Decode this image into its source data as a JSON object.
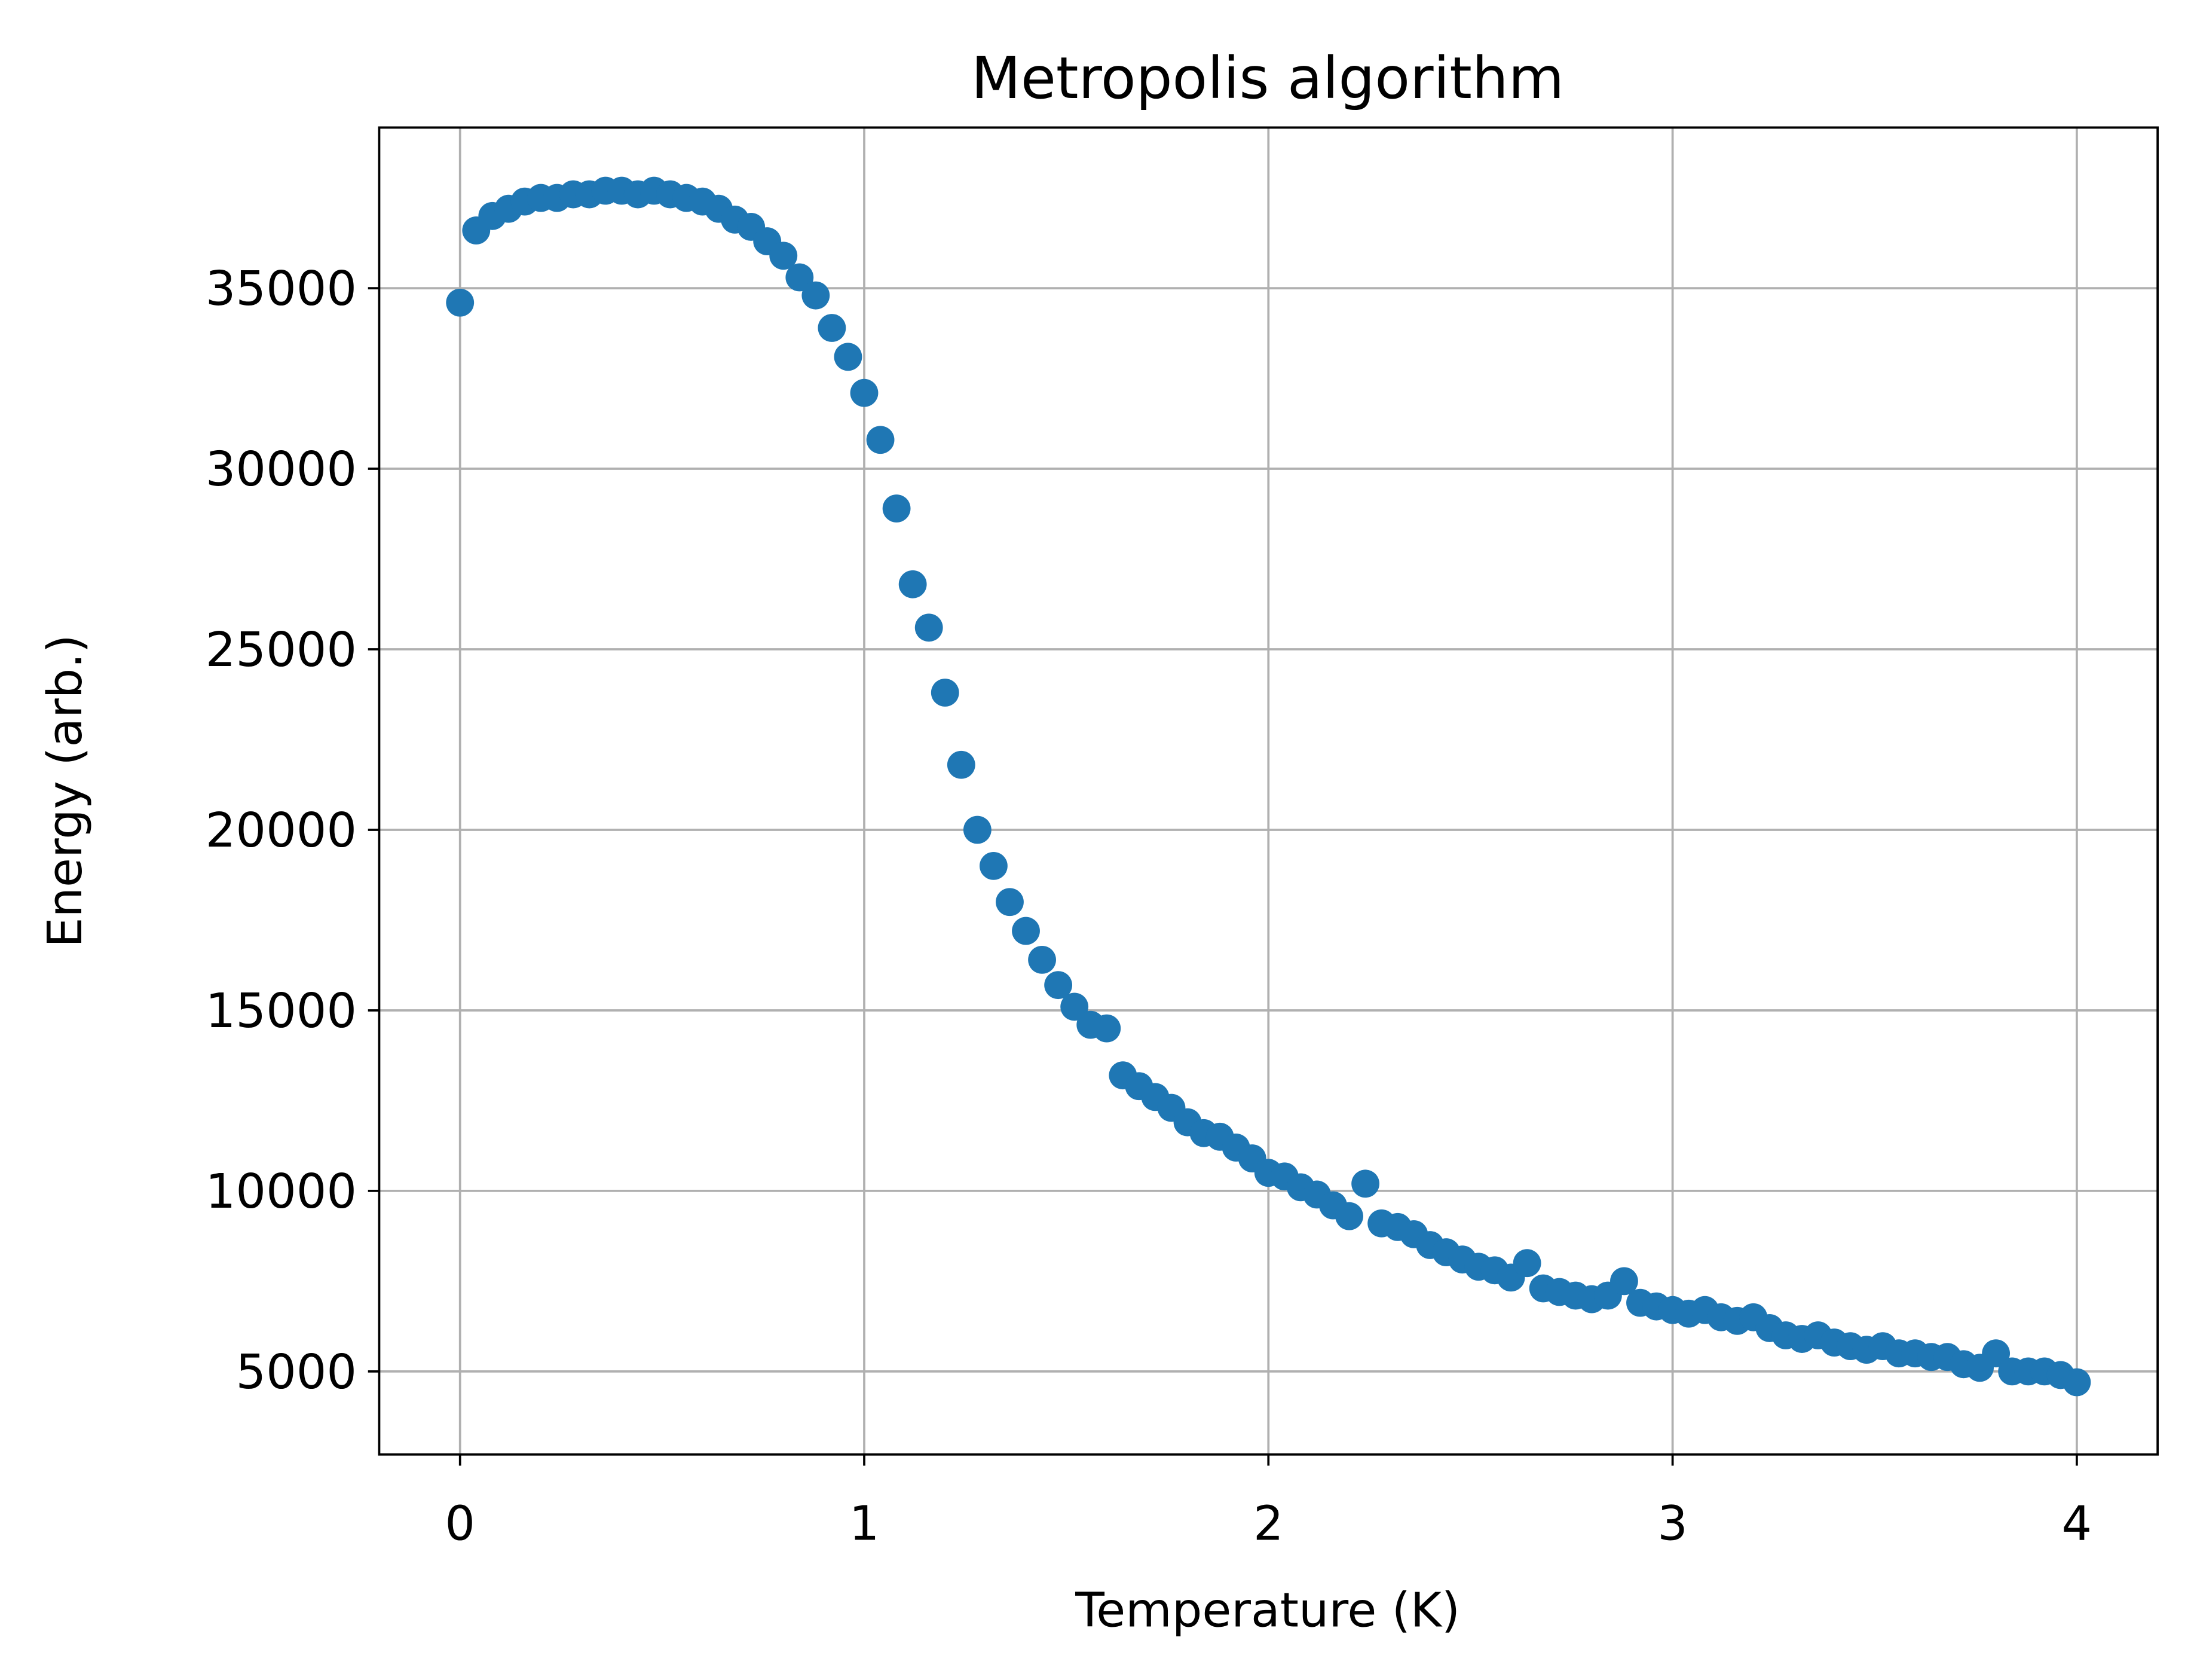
{
  "chart_data": {
    "type": "scatter",
    "title": "Metropolis algorithm",
    "x_label": "Temperature (K)",
    "y_label": "Energy (arb.)",
    "x": [
      0.0,
      0.04,
      0.08,
      0.12,
      0.16,
      0.2,
      0.24,
      0.28,
      0.32,
      0.36,
      0.4,
      0.44,
      0.48,
      0.52,
      0.56,
      0.6,
      0.64,
      0.68,
      0.72,
      0.76,
      0.8,
      0.84,
      0.88,
      0.92,
      0.96,
      1.0,
      1.04,
      1.08,
      1.12,
      1.16,
      1.2,
      1.24,
      1.28,
      1.32,
      1.36,
      1.4,
      1.44,
      1.48,
      1.52,
      1.56,
      1.6,
      1.64,
      1.68,
      1.72,
      1.76,
      1.8,
      1.84,
      1.88,
      1.92,
      1.96,
      2.0,
      2.04,
      2.08,
      2.12,
      2.16,
      2.2,
      2.24,
      2.28,
      2.32,
      2.36,
      2.4,
      2.44,
      2.48,
      2.52,
      2.56,
      2.6,
      2.64,
      2.68,
      2.72,
      2.76,
      2.8,
      2.84,
      2.88,
      2.92,
      2.96,
      3.0,
      3.04,
      3.08,
      3.12,
      3.16,
      3.2,
      3.24,
      3.28,
      3.32,
      3.36,
      3.4,
      3.44,
      3.48,
      3.52,
      3.56,
      3.6,
      3.64,
      3.68,
      3.72,
      3.76,
      3.8,
      3.84,
      3.88,
      3.92,
      3.96,
      4.0
    ],
    "values": [
      34600,
      36600,
      37000,
      37200,
      37400,
      37500,
      37500,
      37600,
      37600,
      37700,
      37700,
      37600,
      37700,
      37600,
      37500,
      37400,
      37200,
      36900,
      36700,
      36300,
      35900,
      35300,
      34800,
      33900,
      33100,
      32100,
      30800,
      28900,
      26800,
      25600,
      23800,
      21800,
      20000,
      19000,
      18000,
      17200,
      16400,
      15700,
      15100,
      14600,
      14500,
      13200,
      12900,
      12600,
      12300,
      11900,
      11600,
      11500,
      11200,
      10900,
      10500,
      10400,
      10100,
      9900,
      9600,
      9300,
      10200,
      9100,
      9000,
      8800,
      8500,
      8300,
      8100,
      7900,
      7800,
      7600,
      8000,
      7300,
      7200,
      7100,
      7000,
      7100,
      7500,
      6900,
      6800,
      6700,
      6600,
      6700,
      6500,
      6400,
      6500,
      6200,
      6000,
      5900,
      6000,
      5800,
      5700,
      5600,
      5700,
      5500,
      5500,
      5400,
      5400,
      5200,
      5100,
      5500,
      5000,
      5000,
      5000,
      4900,
      4700
    ],
    "color": "#1f77b4",
    "xlim": [
      -0.2,
      4.2
    ],
    "xticks": [
      0,
      1,
      2,
      3,
      4
    ],
    "ylim": [
      2700,
      39450
    ],
    "yticks": [
      5000,
      10000,
      15000,
      20000,
      25000,
      30000,
      35000
    ],
    "grid": true
  }
}
